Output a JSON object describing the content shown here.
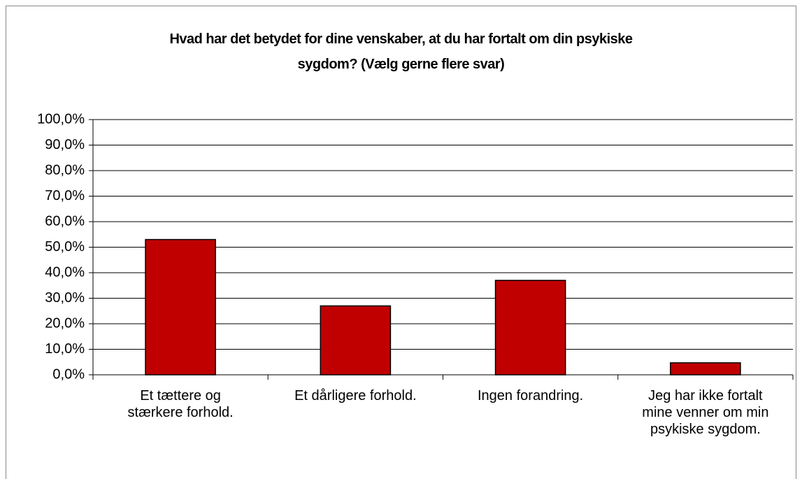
{
  "chart_data": {
    "type": "bar",
    "title": "Hvad har det betydet for dine venskaber, at du har fortalt om din psykiske\nsygdom? (Vælg gerne flere svar)",
    "categories": [
      "Et tættere og\nstærkere forhold.",
      "Et dårligere forhold.",
      "Ingen forandring.",
      "Jeg har ikke fortalt\nmine venner om min\npsykiske sygdom."
    ],
    "values": [
      53.0,
      27.0,
      37.0,
      4.7
    ],
    "color": "#c00000",
    "ylim": [
      0,
      100
    ],
    "yticks": [
      {
        "value": 0,
        "label": "0,0%"
      },
      {
        "value": 10,
        "label": "10,0%"
      },
      {
        "value": 20,
        "label": "20,0%"
      },
      {
        "value": 30,
        "label": "30,0%"
      },
      {
        "value": 40,
        "label": "40,0%"
      },
      {
        "value": 50,
        "label": "50,0%"
      },
      {
        "value": 60,
        "label": "60,0%"
      },
      {
        "value": 70,
        "label": "70,0%"
      },
      {
        "value": 80,
        "label": "80,0%"
      },
      {
        "value": 90,
        "label": "90,0%"
      },
      {
        "value": 100,
        "label": "100,0%"
      }
    ],
    "grid": true
  }
}
